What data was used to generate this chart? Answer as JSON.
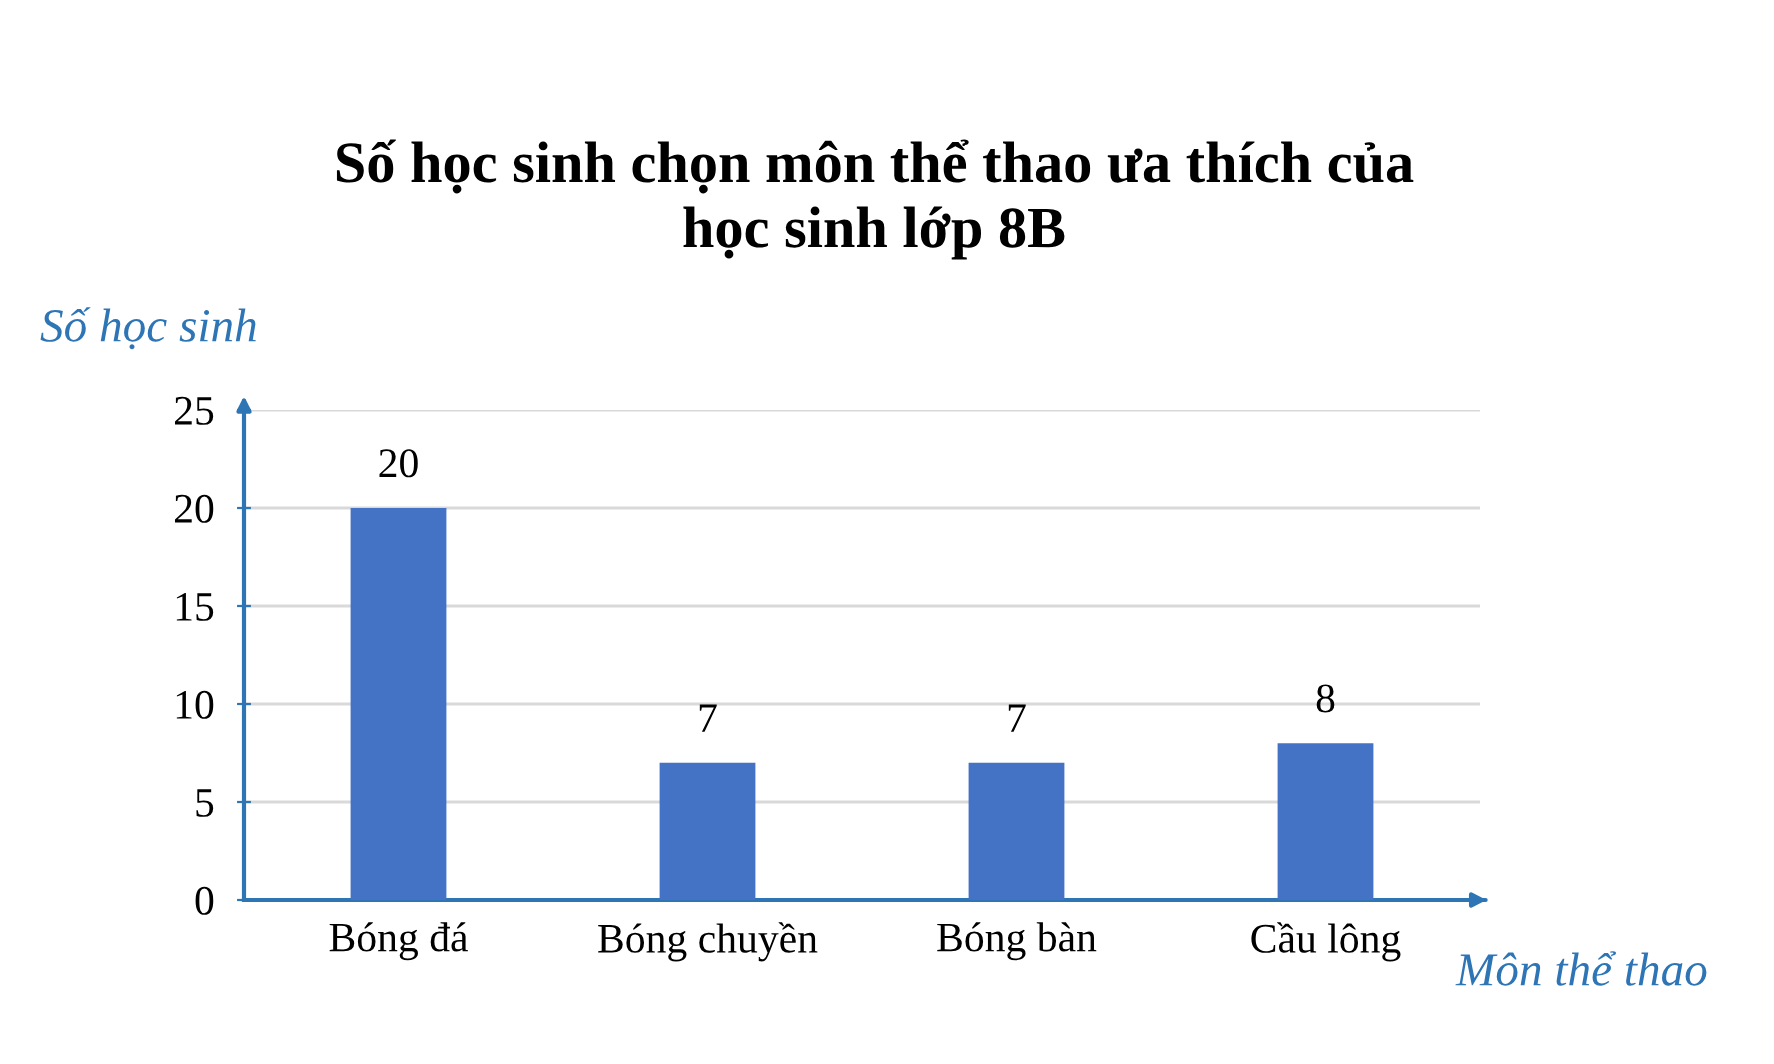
{
  "chart_data": {
    "type": "bar",
    "title": "Số học sinh chọn môn thể thao ưa thích của\nhọc sinh lớp 8B",
    "xlabel": "Môn thể thao",
    "ylabel": "Số học sinh",
    "categories": [
      "Bóng đá",
      "Bóng chuyền",
      "Bóng bàn",
      "Cầu lông"
    ],
    "values": [
      20,
      7,
      7,
      8
    ],
    "color": "#4472c4",
    "ylim": [
      0,
      25
    ],
    "yticks": [
      0,
      5,
      10,
      15,
      20,
      25
    ],
    "grid": "y",
    "data_labels": true
  }
}
